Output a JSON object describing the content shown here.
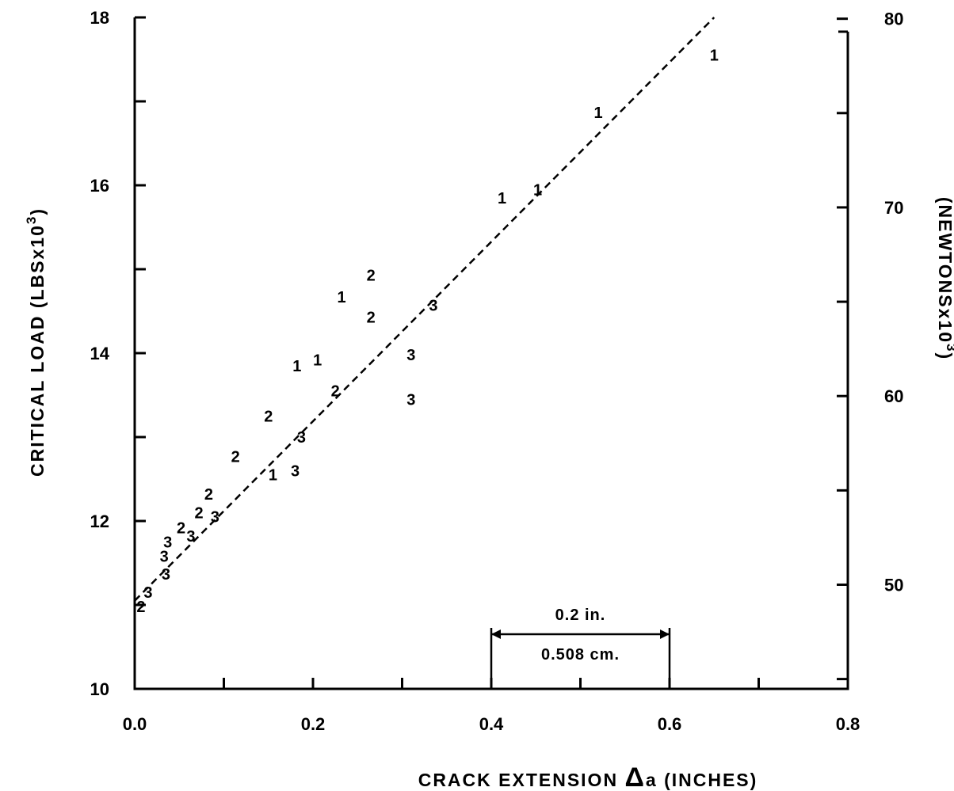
{
  "chart_data": {
    "type": "scatter",
    "title": "",
    "xlabel": {
      "prefix": "CRACK EXTENSION ",
      "symbol": "Δ",
      "suffix": "a (INCHES)"
    },
    "ylabel": {
      "main": "CRITICAL LOAD (LBSx10",
      "sup": "3",
      "close": ")"
    },
    "y2label": {
      "main": "(NEWTONSx10",
      "sup": "3",
      "close": ")"
    },
    "xlim": [
      0.0,
      0.8
    ],
    "ylim": [
      10,
      18
    ],
    "y2lim_newtons": [
      44.48,
      80.07
    ],
    "x_ticks": [
      "0.0",
      "0.2",
      "0.4",
      "0.6",
      "0.8"
    ],
    "y_ticks": [
      "10",
      "12",
      "14",
      "16",
      "18"
    ],
    "y2_ticks": [
      "50",
      "60",
      "70",
      "80"
    ],
    "grid": false,
    "series": [
      {
        "name": "1",
        "marker": "1",
        "points": [
          [
            0.155,
            12.55
          ],
          [
            0.182,
            13.85
          ],
          [
            0.205,
            13.92
          ],
          [
            0.232,
            14.67
          ],
          [
            0.412,
            15.85
          ],
          [
            0.452,
            15.95
          ],
          [
            0.52,
            16.87
          ],
          [
            0.65,
            17.55
          ]
        ]
      },
      {
        "name": "2",
        "marker": "2",
        "points": [
          [
            0.007,
            10.98
          ],
          [
            0.052,
            11.92
          ],
          [
            0.072,
            12.1
          ],
          [
            0.083,
            12.32
          ],
          [
            0.113,
            12.77
          ],
          [
            0.15,
            13.25
          ],
          [
            0.225,
            13.55
          ],
          [
            0.265,
            14.43
          ],
          [
            0.265,
            14.93
          ]
        ]
      },
      {
        "name": "3",
        "marker": "3",
        "points": [
          [
            0.015,
            11.15
          ],
          [
            0.035,
            11.37
          ],
          [
            0.033,
            11.58
          ],
          [
            0.037,
            11.75
          ],
          [
            0.063,
            11.82
          ],
          [
            0.09,
            12.05
          ],
          [
            0.18,
            12.6
          ],
          [
            0.187,
            13.0
          ],
          [
            0.31,
            13.45
          ],
          [
            0.31,
            13.98
          ],
          [
            0.335,
            14.57
          ]
        ]
      }
    ],
    "fit_line": {
      "style": "dashed",
      "points": [
        [
          0.0,
          11.05
        ],
        [
          0.65,
          18.0
        ]
      ]
    },
    "scale_annotation": {
      "upper": "0.2 in.",
      "lower": "0.508 cm.",
      "x_range": [
        0.4,
        0.6
      ]
    }
  }
}
